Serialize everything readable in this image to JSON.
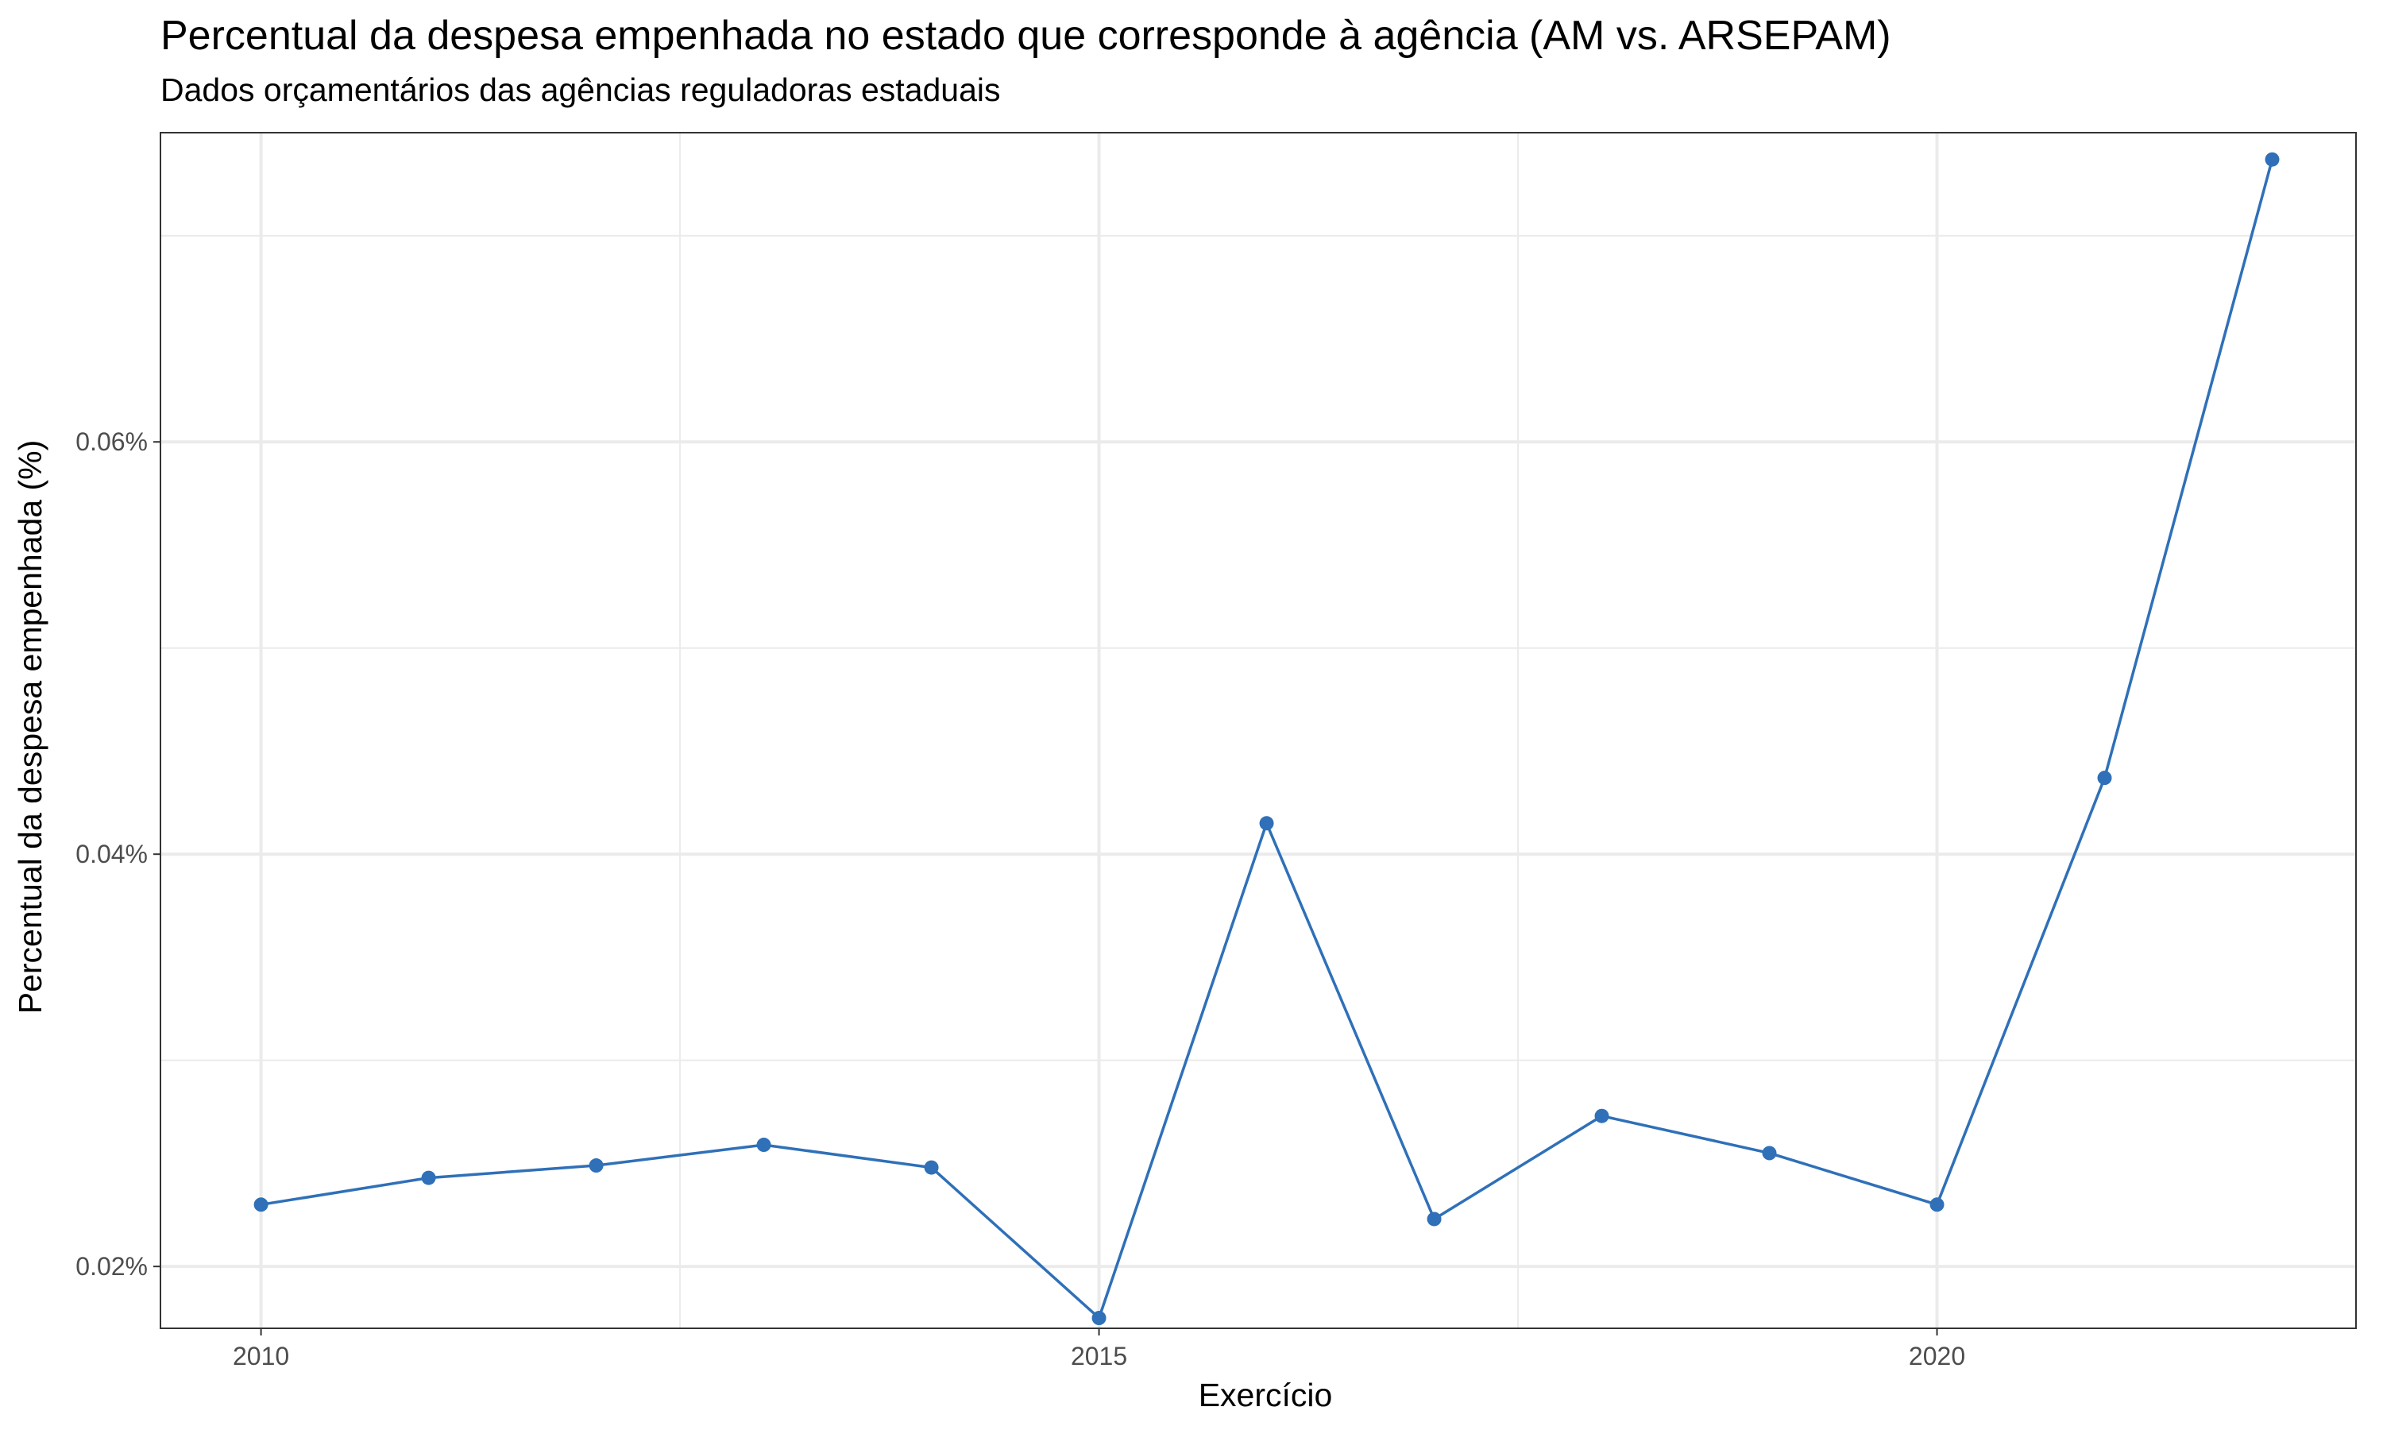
{
  "chart_data": {
    "type": "line",
    "title": "Percentual da despesa empenhada no estado que corresponde à agência (AM vs. ARSEPAM)",
    "subtitle": "Dados orçamentários das agências reguladoras estaduais",
    "xlabel": "Exercício",
    "ylabel": "Percentual da despesa empenhada (%)",
    "x": [
      2010,
      2011,
      2012,
      2013,
      2014,
      2015,
      2016,
      2017,
      2018,
      2019,
      2020,
      2021,
      2022
    ],
    "series": [
      {
        "values": [
          0.023,
          0.0243,
          0.0249,
          0.0259,
          0.0248,
          0.0175,
          0.0415,
          0.0223,
          0.0273,
          0.0255,
          0.023,
          0.0437,
          0.0737
        ]
      }
    ],
    "xlim": [
      2009.4,
      2022.5
    ],
    "ylim": [
      0.017,
      0.075
    ],
    "x_ticks": [
      2010,
      2015,
      2020
    ],
    "x_tick_labels": [
      "2010",
      "2015",
      "2020"
    ],
    "x_minor_ticks": [
      2012.5,
      2017.5,
      2022.5
    ],
    "y_ticks": [
      0.02,
      0.04,
      0.06
    ],
    "y_tick_labels": [
      "0.02%",
      "0.04%",
      "0.06%"
    ],
    "y_minor_ticks": [
      0.03,
      0.05,
      0.07
    ],
    "grid": true,
    "legend": "none",
    "colors": {
      "line": "#2f70b8",
      "point": "#2f70b8",
      "grid": "#ebebeb",
      "panel_border": "#333333",
      "tick_label": "#4d4d4d"
    }
  }
}
